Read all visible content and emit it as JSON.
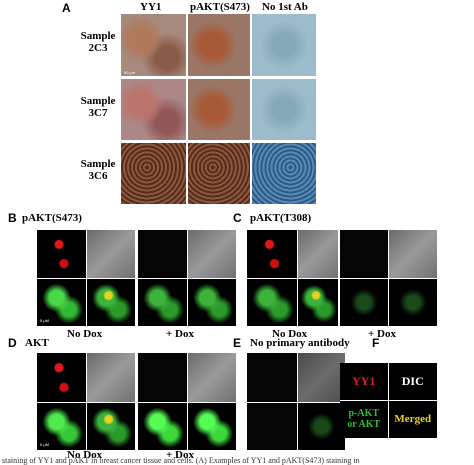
{
  "panel_a": {
    "label": "A",
    "columns": [
      "YY1",
      "pAKT(S473)",
      "No 1st Ab"
    ],
    "rows": [
      "Sample 2C3",
      "Sample 3C7",
      "Sample 3C6"
    ],
    "scale_bar": "50 μm"
  },
  "panel_b": {
    "label": "B",
    "title": "pAKT(S473)",
    "conditions": [
      "No Dox",
      "+ Dox"
    ],
    "scale_bar": "5 μM"
  },
  "panel_c": {
    "label": "C",
    "title": "pAKT(T308)",
    "conditions": [
      "No Dox",
      "+ Dox"
    ]
  },
  "panel_d": {
    "label": "D",
    "title": "AKT",
    "conditions": [
      "No Dox",
      "+ Dox"
    ],
    "scale_bar": "5 μM"
  },
  "panel_e": {
    "label": "E",
    "title": "No primary antibody"
  },
  "panel_f": {
    "label": "F",
    "cells": [
      "YY1",
      "DIC",
      "p-AKT or AKT",
      "Merged"
    ]
  },
  "caption": "staining of YY1 and pAKT in breast cancer tissue and cells. (A) Examples of YY1 and pAKT(S473) staining in"
}
